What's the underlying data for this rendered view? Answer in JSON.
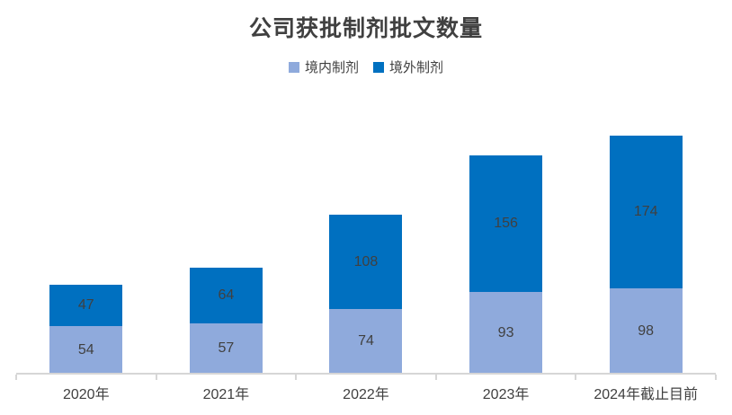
{
  "title": "公司获批制剂批文数量",
  "legend": {
    "items": [
      {
        "label": "境内制剂",
        "color": "#8FAADC"
      },
      {
        "label": "境外制剂",
        "color": "#0070C0"
      }
    ]
  },
  "colors": {
    "domestic": "#8FAADC",
    "overseas": "#0070C0",
    "text": "#404040",
    "axis_line": "#D6D6D6"
  },
  "chart_data": {
    "type": "bar",
    "stacked": true,
    "title": "公司获批制剂批文数量",
    "categories": [
      "2020年",
      "2021年",
      "2022年",
      "2023年",
      "2024年截止目前"
    ],
    "series": [
      {
        "name": "境内制剂",
        "color": "#8FAADC",
        "values": [
          54,
          57,
          74,
          93,
          98
        ]
      },
      {
        "name": "境外制剂",
        "color": "#0070C0",
        "values": [
          47,
          64,
          108,
          156,
          174
        ]
      }
    ],
    "totals": [
      101,
      121,
      182,
      249,
      272
    ],
    "xlabel": "",
    "ylabel": "",
    "ylim": [
      0,
      280
    ],
    "grid": false,
    "data_labels": true,
    "legend_position": "top"
  }
}
